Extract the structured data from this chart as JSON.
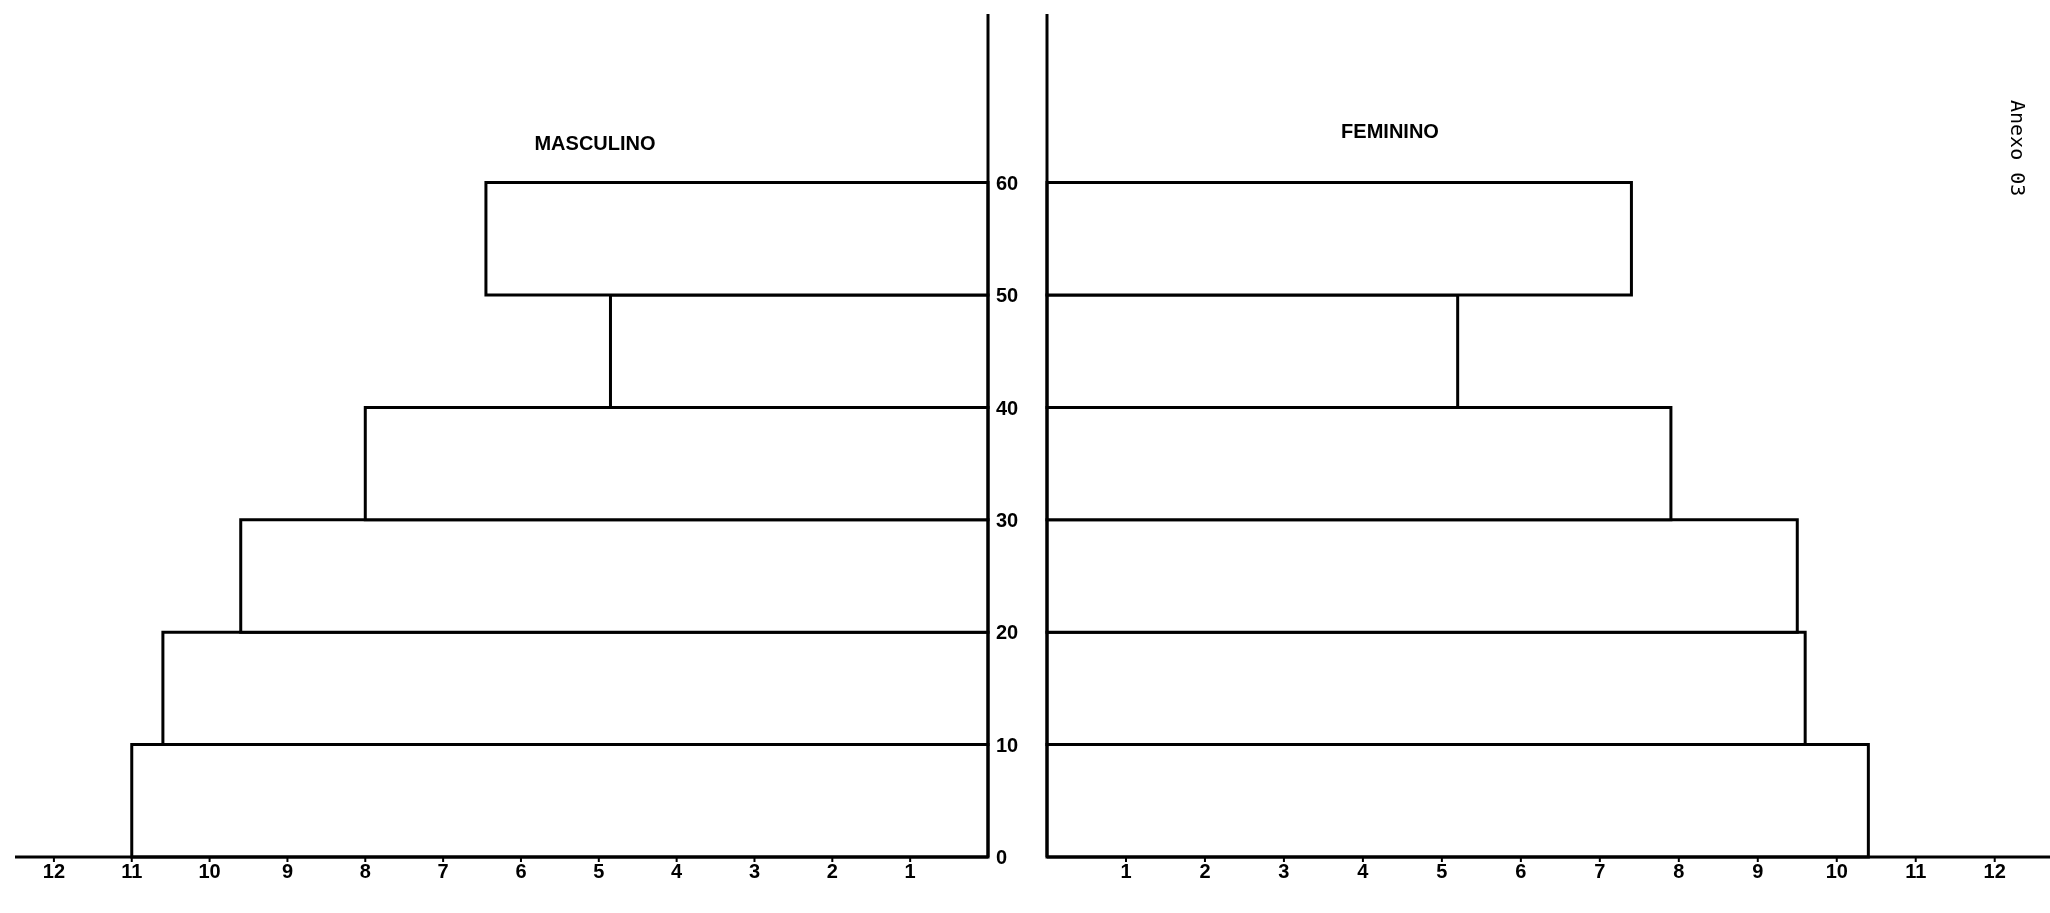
{
  "chart_data": [
    {
      "type": "histogram",
      "title": "MASCULINO",
      "orientation": "horizontal",
      "bins": [
        0,
        10,
        20,
        30,
        40,
        50,
        60
      ],
      "values": [
        11.0,
        10.6,
        9.6,
        8.0,
        4.85,
        6.45
      ],
      "color": "#000000",
      "xlim": [
        12.5,
        0
      ],
      "xticks": [
        1,
        2,
        3,
        4,
        5,
        6,
        7,
        8,
        9,
        10,
        11,
        12
      ],
      "ylim": [
        0,
        75
      ],
      "yticks": [
        0,
        10,
        20,
        30,
        40,
        50,
        60
      ]
    },
    {
      "type": "histogram",
      "title": "FEMININO",
      "orientation": "horizontal",
      "bins": [
        0,
        10,
        20,
        30,
        40,
        50,
        60
      ],
      "values": [
        10.4,
        9.6,
        9.5,
        7.9,
        5.2,
        7.4
      ],
      "color": "#000000",
      "xlim": [
        0,
        12.7
      ],
      "xticks": [
        1,
        2,
        3,
        4,
        5,
        6,
        7,
        8,
        9,
        10,
        11,
        12
      ],
      "ylim": [
        0,
        75
      ],
      "yticks": [
        0,
        10,
        20,
        30,
        40,
        50,
        60
      ],
      "tick_labels": "x",
      "annotations": [
        "Anexo 03"
      ]
    }
  ]
}
